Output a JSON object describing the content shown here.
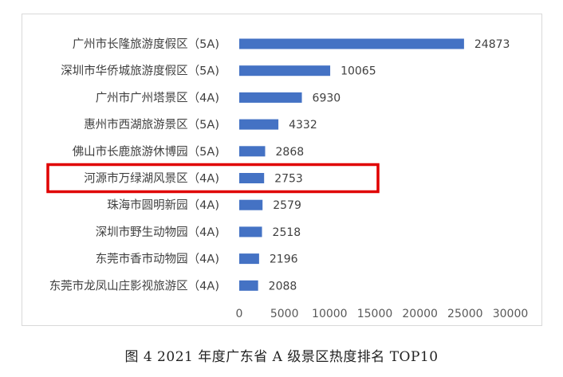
{
  "chart_data": {
    "type": "bar",
    "orientation": "horizontal",
    "categories": [
      "广州市长隆旅游度假区（5A)",
      "深圳市华侨城旅游度假区（5A)",
      "广州市广州塔景区（4A)",
      "惠州市西湖旅游景区（5A)",
      "佛山市长鹿旅游休博园（5A)",
      "河源市万绿湖风景区（4A)",
      "珠海市圆明新园（4A)",
      "深圳市野生动物园（4A)",
      "东莞市香市动物园（4A)",
      "东莞市龙凤山庄影视旅游区（4A)"
    ],
    "values": [
      24873,
      10065,
      6930,
      4332,
      2868,
      2753,
      2579,
      2518,
      2196,
      2088
    ],
    "value_labels": [
      "24873",
      "10065",
      "6930",
      "4332",
      "2868",
      "2753",
      "2579",
      "2518",
      "2196",
      "2088"
    ],
    "xlim": [
      0,
      30000
    ],
    "x_ticks": [
      "0",
      "5000",
      "10000",
      "15000",
      "20000",
      "25000",
      "30000"
    ],
    "grid": false,
    "legend": false,
    "bar_color": "#4472c4",
    "highlight": {
      "category_index": 5,
      "color": "#e00000"
    },
    "title": "",
    "xlabel": "",
    "ylabel": ""
  },
  "caption": "图 4  2021 年度广东省 A 级景区热度排名 TOP10"
}
